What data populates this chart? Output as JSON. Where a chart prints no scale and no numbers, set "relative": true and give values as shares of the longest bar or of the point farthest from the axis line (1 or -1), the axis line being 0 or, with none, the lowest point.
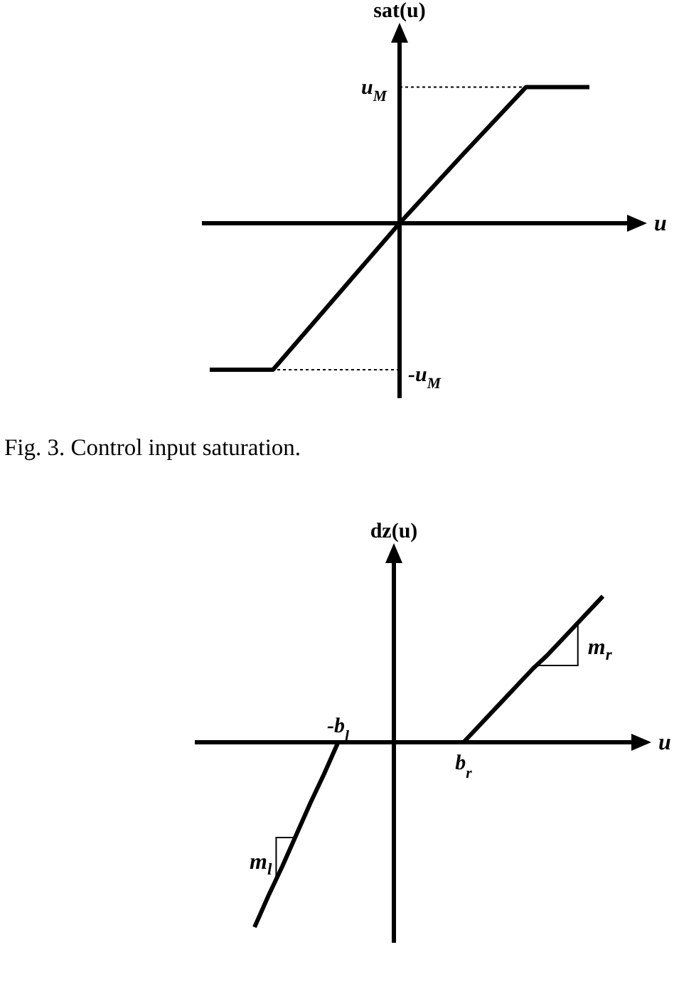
{
  "chart_data": [
    {
      "type": "line",
      "ylabel": "sat(u)",
      "xlabel": "u",
      "categories": [
        null,
        null,
        null,
        null,
        null,
        null,
        null
      ],
      "relative": true,
      "series": [
        {
          "color": "#000000",
          "values": [
            -1,
            -1,
            -0.5,
            0,
            0.47,
            0.93,
            0.93
          ]
        }
      ],
      "ref_lines": [
        {
          "axis": "y",
          "value": 0.93,
          "label": "u$_{M}$",
          "line_style": "dotted"
        },
        {
          "axis": "y",
          "value": -1,
          "label": "-u$_{M}$",
          "line_style": "dotted"
        }
      ],
      "annotations": [
        "Fig. 3. Control input saturation."
      ]
    },
    {
      "type": "line",
      "ylabel": "dz(u)",
      "xlabel": "u",
      "categories": [
        null,
        null,
        null,
        null,
        null,
        null,
        "-b$_{l}$",
        null,
        null,
        null,
        null,
        null,
        null,
        null,
        null,
        "b$_{r}$",
        null,
        null,
        null,
        null,
        null,
        null,
        null,
        null,
        null,
        null
      ],
      "relative": true,
      "series": [
        {
          "color": "#000000",
          "values": [
            -1,
            -0.83,
            -0.67,
            -0.5,
            -0.33,
            -0.17,
            0,
            0,
            0,
            0,
            0,
            0,
            0,
            0,
            0,
            0,
            0.08,
            0.16,
            0.24,
            0.32,
            0.4,
            0.47,
            0.55,
            0.63,
            0.71,
            0.79
          ]
        }
      ],
      "annotations": [
        "m$_{r}$",
        "m$_{l}$"
      ]
    }
  ]
}
